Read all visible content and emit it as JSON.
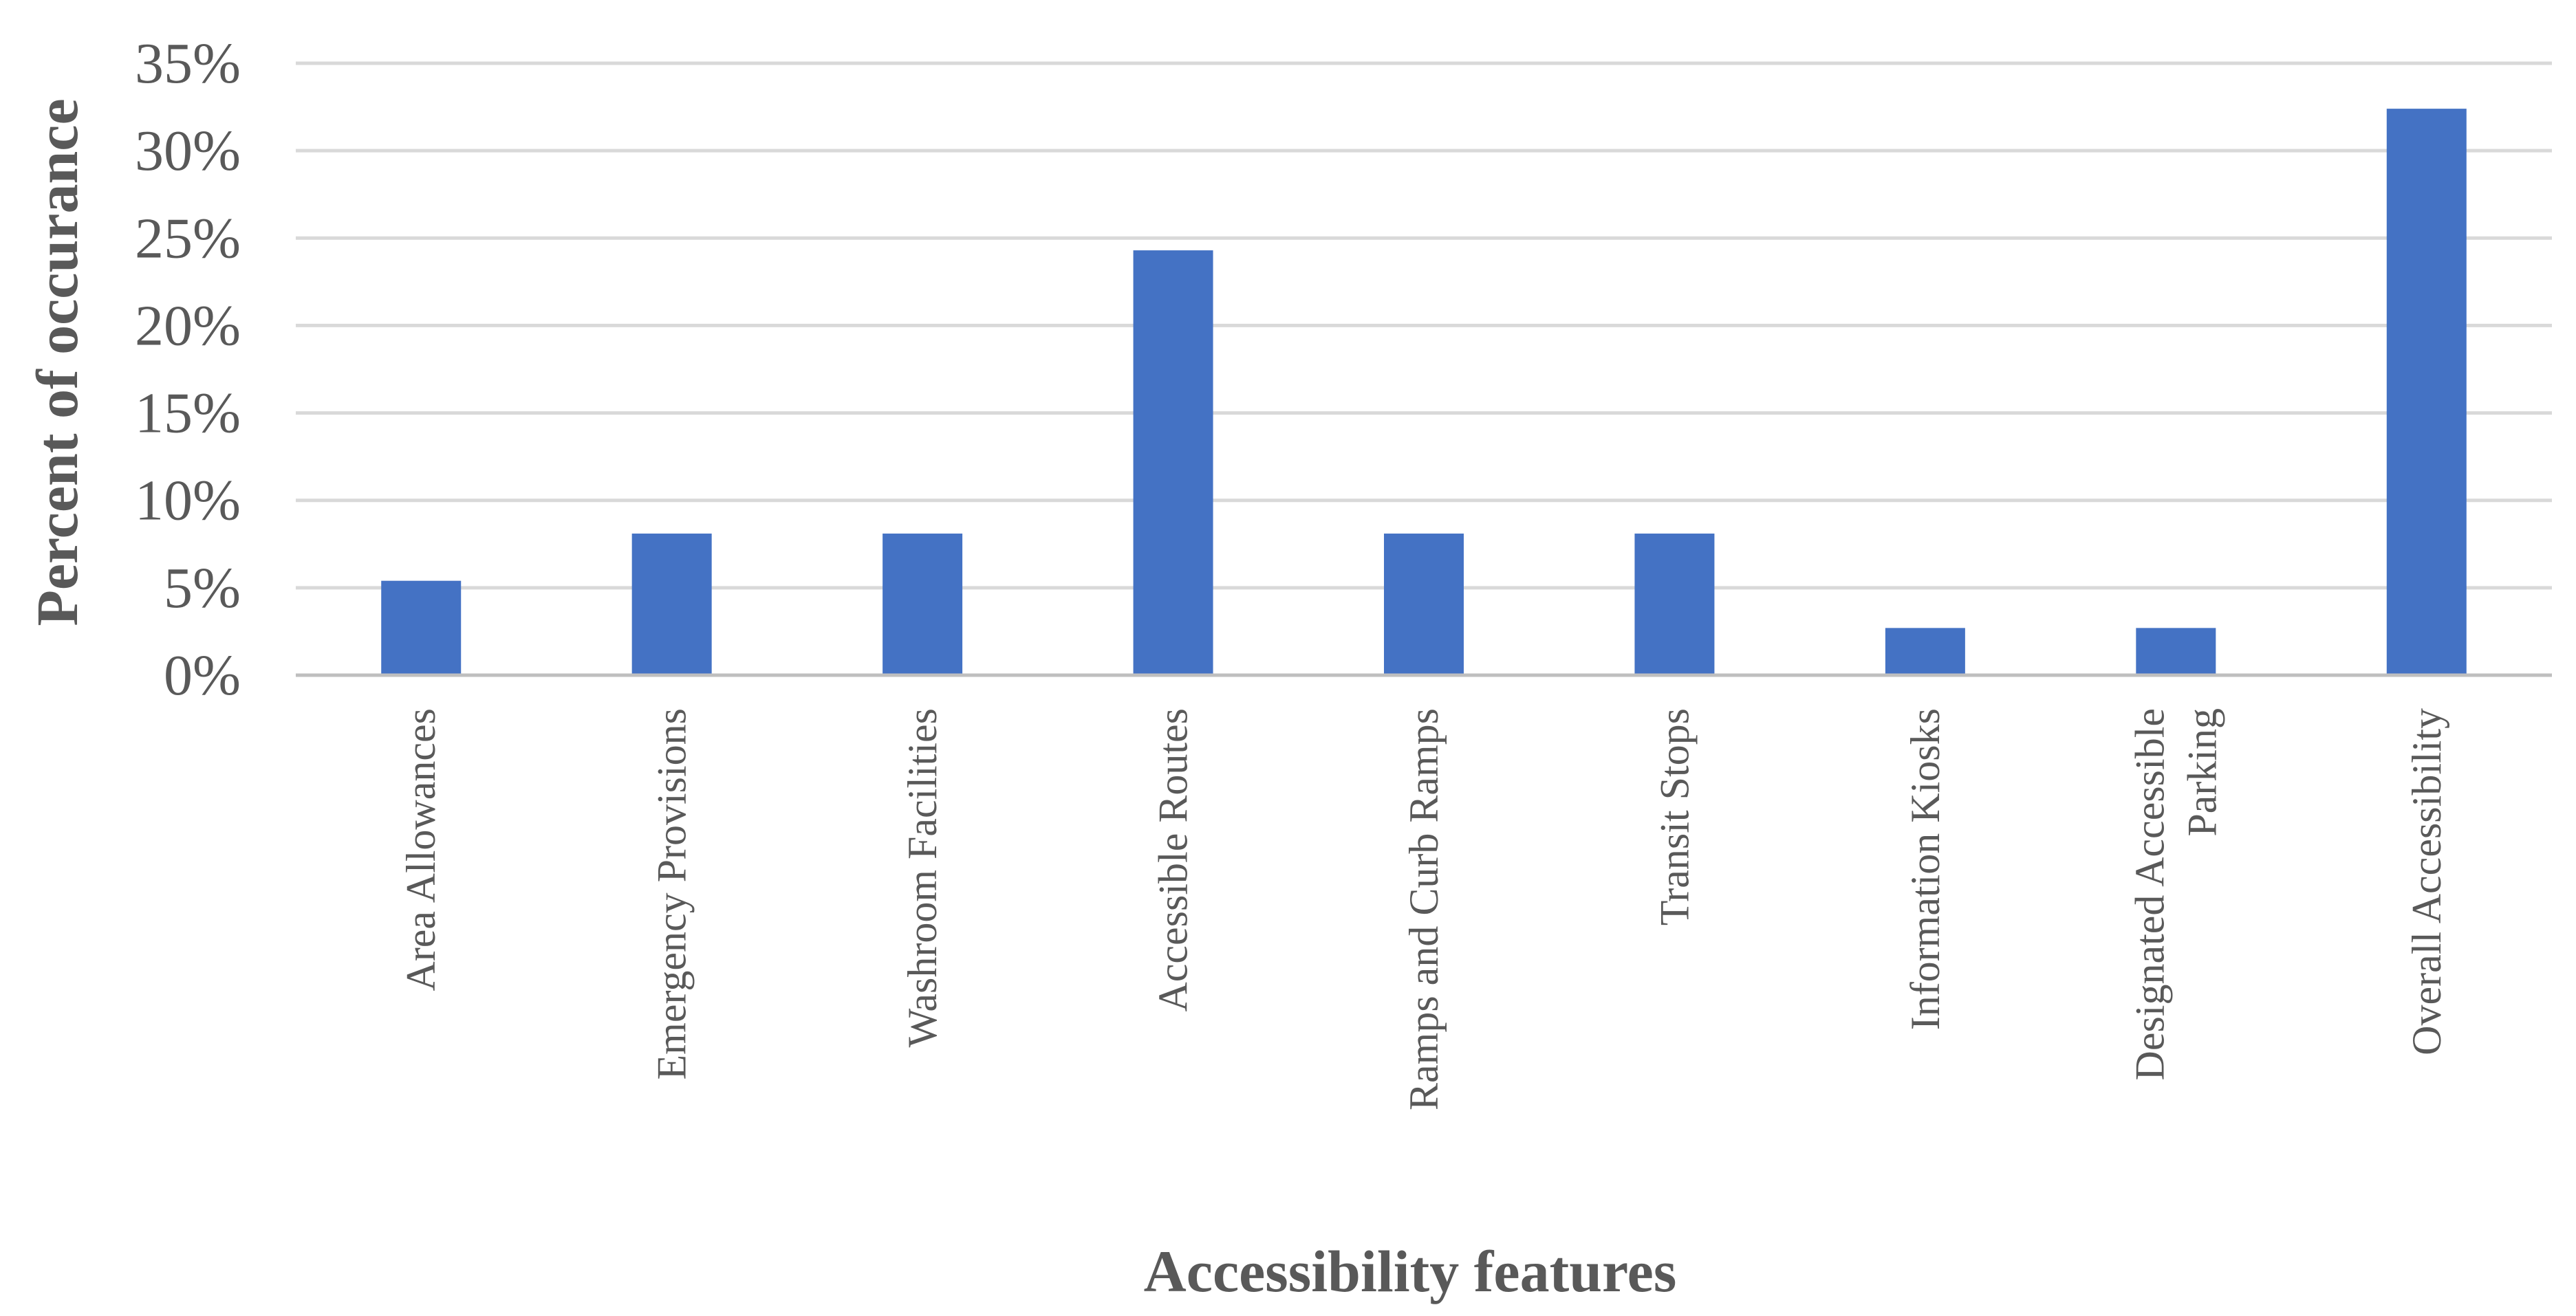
{
  "chart_data": {
    "type": "bar",
    "categories": [
      [
        "Area Allowances"
      ],
      [
        "Emergency Provisions"
      ],
      [
        "Washroom Facilities"
      ],
      [
        "Accessible Routes"
      ],
      [
        "Ramps and Curb Ramps"
      ],
      [
        "Transit Stops"
      ],
      [
        "Information Kiosks"
      ],
      [
        "Designated Accessible",
        "Parking"
      ],
      [
        "Overall Accessibility"
      ]
    ],
    "values": [
      5.4,
      8.1,
      8.1,
      24.3,
      8.1,
      8.1,
      2.7,
      2.7,
      32.4
    ],
    "ylim": [
      0,
      35
    ],
    "yticks": [
      0,
      5,
      10,
      15,
      20,
      25,
      30,
      35
    ],
    "ytick_suffix": "%",
    "xlabel": "Accessibility features",
    "ylabel": "Percent of occurance",
    "bar_color": "#4472c4",
    "grid": true,
    "legend": "none"
  }
}
